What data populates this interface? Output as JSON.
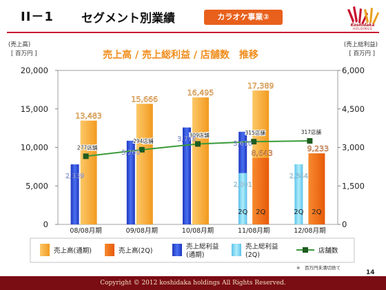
{
  "header": {
    "section_number": "II－1",
    "title": "セグメント別業績",
    "badge": "カラオケ事業②",
    "logo_name": "Koshidaka",
    "logo_sub": "HOLDINGS"
  },
  "footer": {
    "copyright": "Copyright © 2012 koshidaka holdings All Rights Reserved.",
    "page_number": "14"
  },
  "colors": {
    "sales_full": "#f7a83a",
    "sales_2q": "#f26a10",
    "gp_full": "#2c4fd8",
    "gp_2q": "#78d4f2",
    "stores_line": "#3a9a3a",
    "stores_marker": "#1f5c1f",
    "header_accent": "#c8102e",
    "title_orange": "#f08c1a"
  },
  "chart_data": {
    "type": "bar",
    "title": "売上高 / 売上総利益 / 店舗数　推移",
    "left_axis_label_1": "(売上高)",
    "left_axis_label_2": "[ 百万円 ]",
    "right_axis_label_1": "(売上総利益)",
    "right_axis_label_2": "[ 百万円 ]",
    "categories": [
      "08/08月期",
      "09/08月期",
      "10/08月期",
      "11/08月期",
      "12/08月期"
    ],
    "y_left": {
      "ylim": [
        0,
        20000
      ],
      "ticks": [
        "0",
        "5,000",
        "10,000",
        "15,000",
        "20,000"
      ]
    },
    "y_right": {
      "ylim": [
        0,
        6000
      ],
      "ticks": [
        "0",
        "1,500",
        "3,000",
        "4,500",
        "6,000"
      ]
    },
    "grid": false,
    "series": [
      {
        "name": "売上高(通期)",
        "axis": "left",
        "values": [
          13483,
          15666,
          16495,
          17389,
          null
        ],
        "labels": [
          "13,483",
          "15,666",
          "16,495",
          "17,389",
          ""
        ]
      },
      {
        "name": "売上高(2Q)",
        "axis": "left",
        "values": [
          null,
          null,
          null,
          8643,
          9233
        ],
        "labels": [
          "",
          "",
          "",
          "8,643",
          "9,233"
        ]
      },
      {
        "name": "売上総利益(通期)",
        "axis": "right",
        "values": [
          2339,
          3260,
          3776,
          3610,
          null
        ],
        "labels": [
          "2,339",
          "3,260",
          "3,776",
          "3,610",
          ""
        ]
      },
      {
        "name": "売上総利益(2Q)",
        "axis": "right",
        "values": [
          null,
          null,
          null,
          2001,
          2344
        ],
        "labels": [
          "",
          "",
          "",
          "2,001",
          "2,344"
        ]
      },
      {
        "name": "店舗数",
        "type": "line",
        "values": [
          277,
          294,
          309,
          315,
          317
        ],
        "labels": [
          "277店舗",
          "294店舗",
          "309店舗",
          "315店舗",
          "317店舗"
        ]
      }
    ],
    "q2_label": "2Q",
    "legend": [
      {
        "label": "売上高(通期)",
        "sub": "",
        "key": "sales_full"
      },
      {
        "label": "売上高(2Q)",
        "sub": "",
        "key": "sales_2q"
      },
      {
        "label": "売上総利益",
        "sub": "(通期)",
        "key": "gp_full"
      },
      {
        "label": "売上総利益",
        "sub": "(2Q)",
        "key": "gp_2q"
      },
      {
        "label": "店舗数",
        "sub": "",
        "key": "stores"
      }
    ],
    "note": "※　百万円未満切捨て"
  }
}
